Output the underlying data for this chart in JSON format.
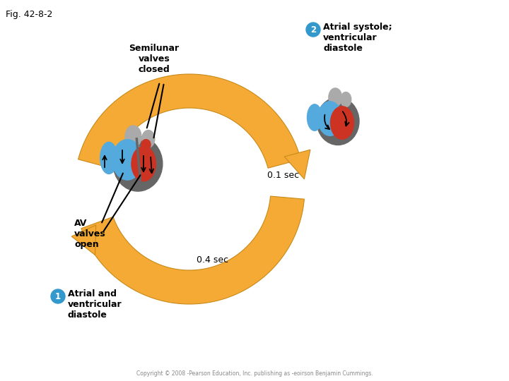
{
  "fig_label": "Fig. 42-8-2",
  "background_color": "#ffffff",
  "label1_text": "Atrial and\nventricular\ndiastole",
  "label2_text": "Atrial systole;\nventricular\ndiastole",
  "label1_circle": "1",
  "label2_circle": "2",
  "circle_color": "#3399cc",
  "circle_text_color": "#ffffff",
  "arrow_color": "#f5aa35",
  "arrow_edge_color": "#c88a18",
  "time1_text": "0.1 sec",
  "time2_text": "0.4 sec",
  "semilunar_text": "Semilunar\nvalves\nclosed",
  "av_text": "AV\nvalves\nopen",
  "heart_gray": "#aaaaaa",
  "heart_dark_gray": "#666666",
  "heart_blue": "#55aadd",
  "heart_red": "#cc3322",
  "copyright_text": "Copyright © 2008 -Pearson Education, Inc. publishing as -eoirson Benjamin Cummings."
}
